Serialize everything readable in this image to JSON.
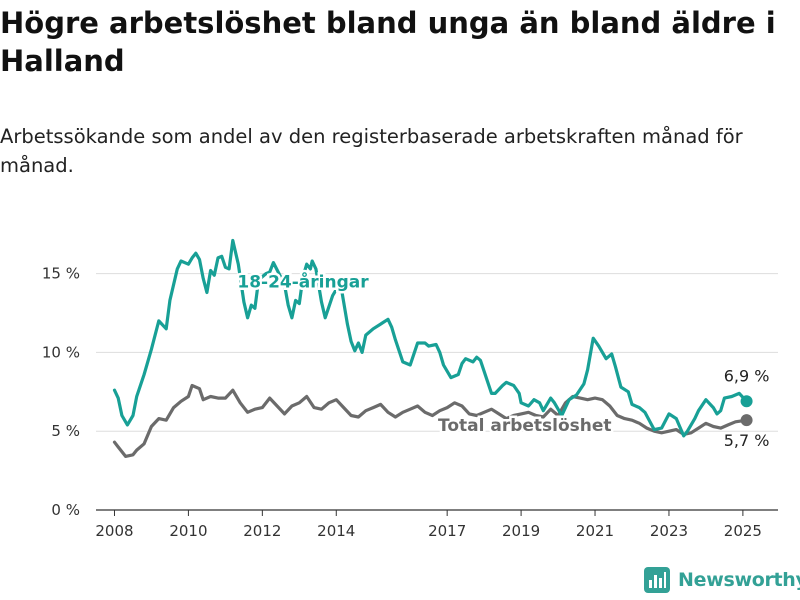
{
  "header": {
    "title": "Högre arbetslöshet bland unga än bland äldre i Halland",
    "subtitle": "Arbetssökande som andel av den registerbaserade arbetskraften månad för månad."
  },
  "brand": {
    "name": "Newsworthy",
    "icon": "bar-chart-logo-icon",
    "color": "#33a196"
  },
  "chart_data": {
    "type": "line",
    "title": "Högre arbetslöshet bland unga än bland äldre i Halland",
    "subtitle": "Arbetssökande som andel av den registerbaserade arbetskraften månad för månad.",
    "xlabel": "",
    "ylabel": "",
    "xlim": [
      2007.5,
      2025.95
    ],
    "ylim": [
      0,
      16.5
    ],
    "grid": true,
    "y_ticks": [
      {
        "value": 0,
        "label": "0 %"
      },
      {
        "value": 5,
        "label": "5 %"
      },
      {
        "value": 10,
        "label": "10 %"
      },
      {
        "value": 15,
        "label": "15 %"
      }
    ],
    "x_ticks": [
      {
        "value": 2008,
        "label": "2008"
      },
      {
        "value": 2010,
        "label": "2010"
      },
      {
        "value": 2012,
        "label": "2012"
      },
      {
        "value": 2014,
        "label": "2014"
      },
      {
        "value": 2017,
        "label": "2017"
      },
      {
        "value": 2019,
        "label": "2019"
      },
      {
        "value": 2021,
        "label": "2021"
      },
      {
        "value": 2023,
        "label": "2023"
      },
      {
        "value": 2025,
        "label": "2025"
      }
    ],
    "series": [
      {
        "name": "18-24-åringar",
        "color": "#18a096",
        "end_label": "6,9 %",
        "points": [
          [
            2008.0,
            7.6
          ],
          [
            2008.1,
            7.1
          ],
          [
            2008.2,
            6.0
          ],
          [
            2008.35,
            5.4
          ],
          [
            2008.5,
            6.0
          ],
          [
            2008.6,
            7.2
          ],
          [
            2008.8,
            8.6
          ],
          [
            2009.0,
            10.2
          ],
          [
            2009.2,
            12.0
          ],
          [
            2009.4,
            11.5
          ],
          [
            2009.5,
            13.3
          ],
          [
            2009.7,
            15.3
          ],
          [
            2009.8,
            15.8
          ],
          [
            2010.0,
            15.6
          ],
          [
            2010.1,
            16.0
          ],
          [
            2010.2,
            16.3
          ],
          [
            2010.3,
            15.9
          ],
          [
            2010.4,
            14.7
          ],
          [
            2010.5,
            13.8
          ],
          [
            2010.6,
            15.2
          ],
          [
            2010.7,
            14.9
          ],
          [
            2010.8,
            16.0
          ],
          [
            2010.9,
            16.1
          ],
          [
            2011.0,
            15.4
          ],
          [
            2011.1,
            15.3
          ],
          [
            2011.2,
            17.1
          ],
          [
            2011.35,
            15.6
          ],
          [
            2011.5,
            13.2
          ],
          [
            2011.6,
            12.2
          ],
          [
            2011.7,
            13.0
          ],
          [
            2011.8,
            12.8
          ],
          [
            2011.9,
            14.6
          ],
          [
            2012.1,
            15.0
          ],
          [
            2012.2,
            15.1
          ],
          [
            2012.3,
            15.7
          ],
          [
            2012.45,
            15.0
          ],
          [
            2012.6,
            14.3
          ],
          [
            2012.7,
            13.0
          ],
          [
            2012.8,
            12.2
          ],
          [
            2012.9,
            13.3
          ],
          [
            2013.0,
            13.1
          ],
          [
            2013.1,
            14.8
          ],
          [
            2013.2,
            15.6
          ],
          [
            2013.3,
            15.3
          ],
          [
            2013.35,
            15.8
          ],
          [
            2013.45,
            15.3
          ],
          [
            2013.6,
            13.2
          ],
          [
            2013.7,
            12.2
          ],
          [
            2013.8,
            12.9
          ],
          [
            2013.9,
            13.6
          ],
          [
            2014.0,
            14.0
          ],
          [
            2014.15,
            13.9
          ],
          [
            2014.3,
            11.8
          ],
          [
            2014.4,
            10.7
          ],
          [
            2014.5,
            10.1
          ],
          [
            2014.6,
            10.6
          ],
          [
            2014.7,
            10.0
          ],
          [
            2014.8,
            11.1
          ],
          [
            2015.0,
            11.5
          ],
          [
            2015.2,
            11.8
          ],
          [
            2015.4,
            12.1
          ],
          [
            2015.5,
            11.6
          ],
          [
            2015.6,
            10.8
          ],
          [
            2015.8,
            9.4
          ],
          [
            2016.0,
            9.2
          ],
          [
            2016.2,
            10.6
          ],
          [
            2016.4,
            10.6
          ],
          [
            2016.5,
            10.4
          ],
          [
            2016.7,
            10.5
          ],
          [
            2016.8,
            10.0
          ],
          [
            2016.9,
            9.2
          ],
          [
            2017.1,
            8.4
          ],
          [
            2017.3,
            8.6
          ],
          [
            2017.4,
            9.3
          ],
          [
            2017.5,
            9.6
          ],
          [
            2017.7,
            9.4
          ],
          [
            2017.8,
            9.7
          ],
          [
            2017.9,
            9.5
          ],
          [
            2018.0,
            8.8
          ],
          [
            2018.2,
            7.4
          ],
          [
            2018.3,
            7.4
          ],
          [
            2018.5,
            7.9
          ],
          [
            2018.6,
            8.1
          ],
          [
            2018.8,
            7.9
          ],
          [
            2018.95,
            7.4
          ],
          [
            2019.0,
            6.8
          ],
          [
            2019.2,
            6.6
          ],
          [
            2019.35,
            7.0
          ],
          [
            2019.5,
            6.8
          ],
          [
            2019.6,
            6.3
          ],
          [
            2019.8,
            7.1
          ],
          [
            2019.9,
            6.8
          ],
          [
            2020.1,
            6.0
          ],
          [
            2020.3,
            7.0
          ],
          [
            2020.5,
            7.3
          ],
          [
            2020.7,
            8.0
          ],
          [
            2020.8,
            8.9
          ],
          [
            2020.95,
            10.9
          ],
          [
            2021.1,
            10.4
          ],
          [
            2021.3,
            9.6
          ],
          [
            2021.45,
            9.9
          ],
          [
            2021.55,
            9.1
          ],
          [
            2021.7,
            7.8
          ],
          [
            2021.9,
            7.5
          ],
          [
            2022.0,
            6.7
          ],
          [
            2022.2,
            6.5
          ],
          [
            2022.35,
            6.2
          ],
          [
            2022.6,
            5.1
          ],
          [
            2022.8,
            5.2
          ],
          [
            2023.0,
            6.1
          ],
          [
            2023.2,
            5.8
          ],
          [
            2023.4,
            4.7
          ],
          [
            2023.5,
            5.0
          ],
          [
            2023.7,
            5.8
          ],
          [
            2023.8,
            6.3
          ],
          [
            2024.0,
            7.0
          ],
          [
            2024.2,
            6.5
          ],
          [
            2024.3,
            6.1
          ],
          [
            2024.4,
            6.3
          ],
          [
            2024.5,
            7.1
          ],
          [
            2024.7,
            7.2
          ],
          [
            2024.9,
            7.4
          ],
          [
            2025.1,
            6.9
          ]
        ]
      },
      {
        "name": "Total arbetslöshet",
        "color": "#6b6b6b",
        "end_label": "5,7 %",
        "points": [
          [
            2008.0,
            4.3
          ],
          [
            2008.1,
            4.0
          ],
          [
            2008.3,
            3.4
          ],
          [
            2008.5,
            3.5
          ],
          [
            2008.6,
            3.8
          ],
          [
            2008.8,
            4.2
          ],
          [
            2009.0,
            5.3
          ],
          [
            2009.2,
            5.8
          ],
          [
            2009.4,
            5.7
          ],
          [
            2009.6,
            6.5
          ],
          [
            2009.8,
            6.9
          ],
          [
            2010.0,
            7.2
          ],
          [
            2010.1,
            7.9
          ],
          [
            2010.3,
            7.7
          ],
          [
            2010.4,
            7.0
          ],
          [
            2010.6,
            7.2
          ],
          [
            2010.8,
            7.1
          ],
          [
            2011.0,
            7.1
          ],
          [
            2011.2,
            7.6
          ],
          [
            2011.4,
            6.8
          ],
          [
            2011.6,
            6.2
          ],
          [
            2011.8,
            6.4
          ],
          [
            2012.0,
            6.5
          ],
          [
            2012.2,
            7.1
          ],
          [
            2012.4,
            6.6
          ],
          [
            2012.6,
            6.1
          ],
          [
            2012.8,
            6.6
          ],
          [
            2013.0,
            6.8
          ],
          [
            2013.2,
            7.2
          ],
          [
            2013.4,
            6.5
          ],
          [
            2013.6,
            6.4
          ],
          [
            2013.8,
            6.8
          ],
          [
            2014.0,
            7.0
          ],
          [
            2014.2,
            6.5
          ],
          [
            2014.4,
            6.0
          ],
          [
            2014.6,
            5.9
          ],
          [
            2014.8,
            6.3
          ],
          [
            2015.0,
            6.5
          ],
          [
            2015.2,
            6.7
          ],
          [
            2015.4,
            6.2
          ],
          [
            2015.6,
            5.9
          ],
          [
            2015.8,
            6.2
          ],
          [
            2016.0,
            6.4
          ],
          [
            2016.2,
            6.6
          ],
          [
            2016.4,
            6.2
          ],
          [
            2016.6,
            6.0
          ],
          [
            2016.8,
            6.3
          ],
          [
            2017.0,
            6.5
          ],
          [
            2017.2,
            6.8
          ],
          [
            2017.4,
            6.6
          ],
          [
            2017.6,
            6.1
          ],
          [
            2017.8,
            6.0
          ],
          [
            2018.0,
            6.2
          ],
          [
            2018.2,
            6.4
          ],
          [
            2018.4,
            6.1
          ],
          [
            2018.6,
            5.8
          ],
          [
            2018.8,
            6.0
          ],
          [
            2019.0,
            6.1
          ],
          [
            2019.2,
            6.2
          ],
          [
            2019.4,
            6.0
          ],
          [
            2019.6,
            5.9
          ],
          [
            2019.8,
            6.4
          ],
          [
            2020.0,
            6.0
          ],
          [
            2020.2,
            6.8
          ],
          [
            2020.4,
            7.2
          ],
          [
            2020.6,
            7.1
          ],
          [
            2020.8,
            7.0
          ],
          [
            2021.0,
            7.1
          ],
          [
            2021.2,
            7.0
          ],
          [
            2021.4,
            6.6
          ],
          [
            2021.6,
            6.0
          ],
          [
            2021.8,
            5.8
          ],
          [
            2022.0,
            5.7
          ],
          [
            2022.2,
            5.5
          ],
          [
            2022.4,
            5.2
          ],
          [
            2022.6,
            5.0
          ],
          [
            2022.8,
            4.9
          ],
          [
            2023.0,
            5.0
          ],
          [
            2023.2,
            5.1
          ],
          [
            2023.4,
            4.8
          ],
          [
            2023.6,
            4.9
          ],
          [
            2023.8,
            5.2
          ],
          [
            2024.0,
            5.5
          ],
          [
            2024.2,
            5.3
          ],
          [
            2024.4,
            5.2
          ],
          [
            2024.6,
            5.4
          ],
          [
            2024.8,
            5.6
          ],
          [
            2025.1,
            5.7
          ]
        ]
      }
    ],
    "annotations": [
      {
        "text": "18-24-åringar",
        "series": 0,
        "x": 2013.1,
        "y": 14.5
      },
      {
        "text": "Total arbetslöshet",
        "series": 1,
        "x": 2019.1,
        "y": 5.4
      }
    ]
  }
}
